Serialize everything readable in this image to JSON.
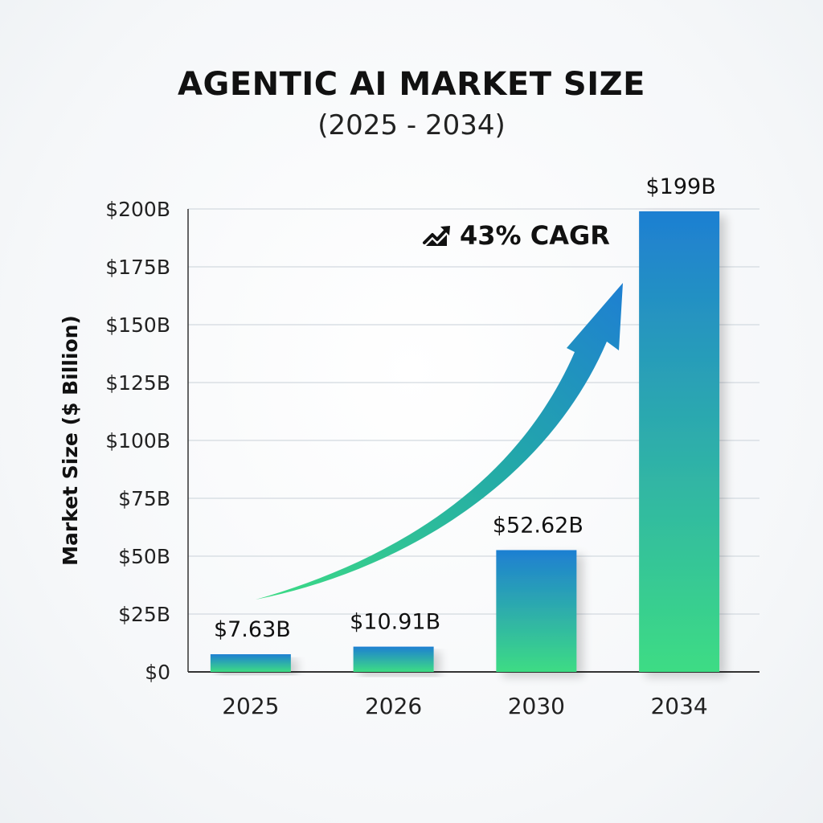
{
  "chart_data": {
    "type": "bar",
    "title": "AGENTIC AI MARKET SIZE",
    "subtitle": "(2025 - 2034)",
    "ylabel": "Market Size ($ Billion)",
    "xlabel": "",
    "categories": [
      "2025",
      "2026",
      "2030",
      "2034"
    ],
    "values": [
      7.63,
      10.91,
      52.62,
      199
    ],
    "value_labels": [
      "$7.63B",
      "$10.91B",
      "$52.62B",
      "$199B"
    ],
    "ylim": [
      0,
      200
    ],
    "yticks": [
      0,
      25,
      50,
      75,
      100,
      125,
      150,
      175,
      200
    ],
    "ytick_labels": [
      "$0",
      "$25B",
      "$50B",
      "$75B",
      "$100B",
      "$125B",
      "$150B",
      "$175B",
      "$200B"
    ],
    "annotation": "43% CAGR",
    "grid": true,
    "colors": {
      "bar_top": "#1e7fd2",
      "bar_bottom": "#3ddc84",
      "grid": "#d3d9e0",
      "axis": "#333333"
    }
  }
}
